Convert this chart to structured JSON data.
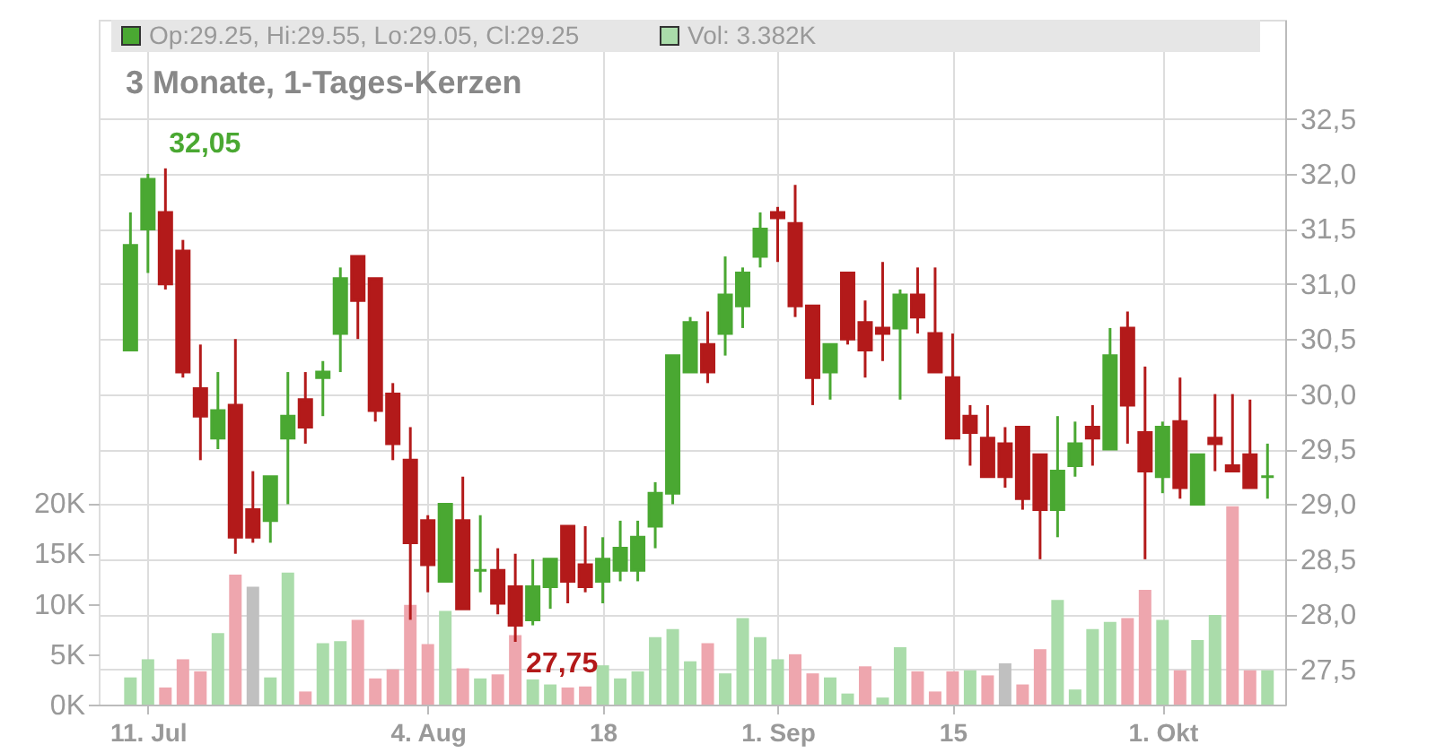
{
  "chart_data": {
    "type": "candlestick",
    "title": "3 Monate, 1-Tages-Kerzen",
    "categories": [
      null,
      "11. Jul",
      null,
      null,
      null,
      null,
      null,
      null,
      null,
      null,
      null,
      null,
      null,
      null,
      null,
      null,
      null,
      "4. Aug",
      null,
      null,
      null,
      null,
      null,
      null,
      null,
      null,
      null,
      "18",
      null,
      null,
      null,
      null,
      null,
      null,
      null,
      null,
      null,
      "1. Sep",
      null,
      null,
      null,
      null,
      null,
      null,
      null,
      null,
      null,
      "15",
      null,
      null,
      null,
      null,
      null,
      null,
      null,
      null,
      null,
      null,
      null,
      "1. Okt",
      null,
      null,
      null,
      null,
      null,
      null
    ],
    "series": [
      {
        "type": "candlestick",
        "name": "Op:29.25, Hi:29.55, Lo:29.05, Cl:29.25",
        "color": "#4aa832",
        "colors": [
          "#4aa832",
          "#4aa832",
          "#b31a1a",
          "#b31a1a",
          "#b31a1a",
          "#4aa832",
          "#b31a1a",
          "#b31a1a",
          "#4aa832",
          "#4aa832",
          "#b31a1a",
          "#4aa832",
          "#4aa832",
          "#b31a1a",
          "#b31a1a",
          "#b31a1a",
          "#b31a1a",
          "#b31a1a",
          "#4aa832",
          "#b31a1a",
          "#4aa832",
          "#b31a1a",
          "#b31a1a",
          "#4aa832",
          "#4aa832",
          "#b31a1a",
          "#b31a1a",
          "#4aa832",
          "#4aa832",
          "#4aa832",
          "#4aa832",
          "#4aa832",
          "#4aa832",
          "#b31a1a",
          "#4aa832",
          "#4aa832",
          "#4aa832",
          "#b31a1a",
          "#b31a1a",
          "#b31a1a",
          "#4aa832",
          "#b31a1a",
          "#b31a1a",
          "#b31a1a",
          "#4aa832",
          "#b31a1a",
          "#b31a1a",
          "#b31a1a",
          "#b31a1a",
          "#b31a1a",
          "#b31a1a",
          "#b31a1a",
          "#b31a1a",
          "#4aa832",
          "#4aa832",
          "#b31a1a",
          "#4aa832",
          "#b31a1a",
          "#b31a1a",
          "#4aa832",
          "#b31a1a",
          "#4aa832",
          "#b31a1a",
          "#b31a1a",
          "#b31a1a",
          "#4aa832"
        ],
        "ohlc": [
          [
            30.4,
            31.65,
            30.4,
            31.35
          ],
          [
            31.5,
            32.0,
            31.1,
            31.95
          ],
          [
            31.65,
            32.05,
            30.95,
            31.0
          ],
          [
            31.3,
            31.4,
            30.15,
            30.2
          ],
          [
            30.05,
            30.45,
            29.4,
            29.8
          ],
          [
            29.6,
            30.2,
            29.5,
            29.85
          ],
          [
            29.9,
            30.5,
            28.55,
            28.7
          ],
          [
            28.95,
            29.3,
            28.65,
            28.7
          ],
          [
            28.85,
            29.25,
            28.65,
            29.25
          ],
          [
            29.6,
            30.2,
            29.0,
            29.8
          ],
          [
            29.95,
            30.2,
            29.55,
            29.7
          ],
          [
            30.15,
            30.3,
            29.8,
            30.2
          ],
          [
            30.55,
            31.15,
            30.2,
            31.05
          ],
          [
            31.25,
            31.25,
            30.5,
            30.85
          ],
          [
            31.05,
            31.05,
            29.75,
            29.85
          ],
          [
            30.0,
            30.1,
            29.4,
            29.55
          ],
          [
            29.4,
            29.7,
            27.95,
            28.65
          ],
          [
            28.85,
            28.9,
            28.2,
            28.45
          ],
          [
            28.3,
            29.0,
            28.3,
            29.0
          ],
          [
            28.85,
            29.25,
            28.05,
            28.05
          ],
          [
            28.4,
            28.9,
            28.2,
            28.4
          ],
          [
            28.4,
            28.6,
            28.0,
            28.1
          ],
          [
            28.25,
            28.55,
            27.75,
            27.9
          ],
          [
            27.95,
            28.5,
            27.9,
            28.25
          ],
          [
            28.25,
            28.5,
            28.05,
            28.5
          ],
          [
            28.8,
            28.8,
            28.1,
            28.3
          ],
          [
            28.45,
            28.8,
            28.2,
            28.25
          ],
          [
            28.3,
            28.7,
            28.1,
            28.5
          ],
          [
            28.4,
            28.85,
            28.3,
            28.6
          ],
          [
            28.4,
            28.85,
            28.3,
            28.7
          ],
          [
            28.8,
            29.2,
            28.6,
            29.1
          ],
          [
            29.1,
            30.35,
            29.0,
            30.35
          ],
          [
            30.2,
            30.7,
            30.2,
            30.65
          ],
          [
            30.45,
            30.75,
            30.1,
            30.2
          ],
          [
            30.55,
            31.25,
            30.35,
            30.9
          ],
          [
            30.8,
            31.15,
            30.6,
            31.1
          ],
          [
            31.25,
            31.65,
            31.15,
            31.5
          ],
          [
            31.65,
            31.7,
            31.2,
            31.6
          ],
          [
            31.55,
            31.9,
            30.7,
            30.8
          ],
          [
            30.8,
            30.8,
            29.9,
            30.15
          ],
          [
            30.2,
            30.45,
            29.95,
            30.45
          ],
          [
            31.1,
            31.1,
            30.45,
            30.5
          ],
          [
            30.65,
            30.85,
            30.15,
            30.4
          ],
          [
            30.6,
            31.2,
            30.3,
            30.55
          ],
          [
            30.6,
            30.95,
            29.95,
            30.9
          ],
          [
            30.9,
            31.15,
            30.55,
            30.7
          ],
          [
            30.55,
            31.15,
            30.2,
            30.2
          ],
          [
            30.15,
            30.55,
            29.6,
            29.6
          ],
          [
            29.8,
            29.9,
            29.35,
            29.65
          ],
          [
            29.6,
            29.9,
            29.25,
            29.25
          ],
          [
            29.55,
            29.7,
            29.15,
            29.25
          ],
          [
            29.7,
            29.7,
            28.95,
            29.05
          ],
          [
            29.45,
            29.45,
            28.5,
            28.95
          ],
          [
            28.95,
            29.8,
            28.7,
            29.3
          ],
          [
            29.35,
            29.75,
            29.25,
            29.55
          ],
          [
            29.7,
            29.9,
            29.35,
            29.6
          ],
          [
            29.5,
            30.6,
            29.5,
            30.35
          ],
          [
            30.6,
            30.75,
            29.55,
            29.9
          ],
          [
            29.65,
            30.25,
            28.5,
            29.3
          ],
          [
            29.25,
            29.75,
            29.1,
            29.7
          ],
          [
            29.75,
            30.15,
            29.05,
            29.15
          ],
          [
            29.0,
            29.45,
            29.0,
            29.45
          ],
          [
            29.6,
            30.0,
            29.3,
            29.55
          ],
          [
            29.35,
            30.0,
            29.3,
            29.3
          ],
          [
            29.45,
            29.95,
            29.15,
            29.15
          ],
          [
            29.25,
            29.55,
            29.05,
            29.25
          ]
        ]
      },
      {
        "type": "bar",
        "axis": "y2",
        "name": "Vol: 3.382K",
        "color": "#aadcaa",
        "colors": [
          "#aadcaa",
          "#aadcaa",
          "#eea6ae",
          "#eea6ae",
          "#eea6ae",
          "#aadcaa",
          "#eea6ae",
          "#c0c0c0",
          "#aadcaa",
          "#aadcaa",
          "#eea6ae",
          "#aadcaa",
          "#aadcaa",
          "#eea6ae",
          "#eea6ae",
          "#eea6ae",
          "#eea6ae",
          "#eea6ae",
          "#aadcaa",
          "#eea6ae",
          "#aadcaa",
          "#eea6ae",
          "#eea6ae",
          "#aadcaa",
          "#aadcaa",
          "#eea6ae",
          "#eea6ae",
          "#aadcaa",
          "#aadcaa",
          "#aadcaa",
          "#aadcaa",
          "#aadcaa",
          "#aadcaa",
          "#eea6ae",
          "#aadcaa",
          "#aadcaa",
          "#aadcaa",
          "#aadcaa",
          "#eea6ae",
          "#eea6ae",
          "#aadcaa",
          "#aadcaa",
          "#eea6ae",
          "#aadcaa",
          "#aadcaa",
          "#eea6ae",
          "#eea6ae",
          "#eea6ae",
          "#aadcaa",
          "#eea6ae",
          "#c0c0c0",
          "#eea6ae",
          "#eea6ae",
          "#aadcaa",
          "#aadcaa",
          "#aadcaa",
          "#aadcaa",
          "#eea6ae",
          "#eea6ae",
          "#aadcaa",
          "#eea6ae",
          "#aadcaa",
          "#aadcaa",
          "#eea6ae",
          "#eea6ae",
          "#aadcaa"
        ],
        "values": [
          2.7,
          4.5,
          1.7,
          4.5,
          3.3,
          7.1,
          12.9,
          11.7,
          2.7,
          13.1,
          1.3,
          6.1,
          6.3,
          8.4,
          2.6,
          3.5,
          9.9,
          6.0,
          9.3,
          3.6,
          2.6,
          3.0,
          6.9,
          2.5,
          2.0,
          1.7,
          1.8,
          3.9,
          2.6,
          3.3,
          6.7,
          7.5,
          4.3,
          6.1,
          3.1,
          8.6,
          6.7,
          4.5,
          5.0,
          3.1,
          2.7,
          1.1,
          3.8,
          0.7,
          5.7,
          3.3,
          1.3,
          3.3,
          3.4,
          2.9,
          4.1,
          2.0,
          5.5,
          10.4,
          1.5,
          7.5,
          8.2,
          8.6,
          11.4,
          8.4,
          3.4,
          6.4,
          8.9,
          19.7,
          3.4,
          3.4
        ]
      }
    ],
    "ylim": [
      27.18,
      33.4
    ],
    "yticks": [
      {
        "value": 27.5,
        "label": "27,5"
      },
      {
        "value": 28.0,
        "label": "28,0"
      },
      {
        "value": 28.5,
        "label": "28,5"
      },
      {
        "value": 29.0,
        "label": "29,0"
      },
      {
        "value": 29.5,
        "label": "29,5"
      },
      {
        "value": 30.0,
        "label": "30,0"
      },
      {
        "value": 30.5,
        "label": "30,5"
      },
      {
        "value": 31.0,
        "label": "31,0"
      },
      {
        "value": 31.5,
        "label": "31,5"
      },
      {
        "value": 32.0,
        "label": "32,0"
      },
      {
        "value": 32.5,
        "label": "32,5"
      }
    ],
    "y2lim": [
      0,
      68
    ],
    "y2ticks": [
      {
        "value": 0,
        "label": "0K"
      },
      {
        "value": 5,
        "label": "5K"
      },
      {
        "value": 10,
        "label": "10K"
      },
      {
        "value": 15,
        "label": "15K"
      },
      {
        "value": 20,
        "label": "20K"
      }
    ],
    "annotations": [
      "32,05",
      "27,75"
    ],
    "grid": true,
    "legend": "top"
  }
}
